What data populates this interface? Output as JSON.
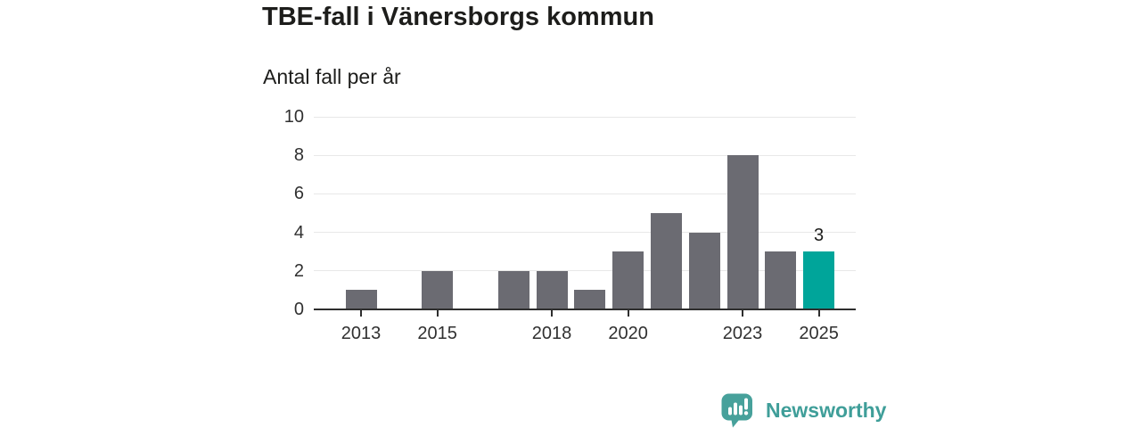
{
  "title": "TBE-fall i Vänersborgs kommun",
  "subtitle": "Antal fall per år",
  "chart_data": {
    "type": "bar",
    "title": "TBE-fall i Vänersborgs kommun",
    "subtitle": "Antal fall per år",
    "x": [
      2013,
      2014,
      2015,
      2016,
      2017,
      2018,
      2019,
      2020,
      2021,
      2022,
      2023,
      2024,
      2025
    ],
    "values": [
      1,
      0,
      2,
      0,
      2,
      2,
      1,
      3,
      5,
      4,
      8,
      3,
      3
    ],
    "highlight_x": 2025,
    "value_labels": [
      {
        "x": 2025,
        "label": "3"
      }
    ],
    "yticks": [
      0,
      2,
      4,
      6,
      8,
      10
    ],
    "xticks": [
      2013,
      2015,
      2018,
      2020,
      2023,
      2025
    ],
    "ylim": [
      0,
      10
    ],
    "grid": true,
    "legend": false
  },
  "colors": {
    "bar_default": "#6b6b72",
    "bar_highlight": "#00a59a",
    "gridline": "#e8e8e8",
    "axis_line": "#2e2e2e",
    "axis_text": "#303030",
    "title_text": "#1d1d1b",
    "logo_teal": "#3f9e99",
    "logo_icon_fill": "#47a19b"
  },
  "branding": {
    "name": "Newsworthy",
    "icon": "newsworthy-bar-chart-speech-bubble-icon"
  }
}
